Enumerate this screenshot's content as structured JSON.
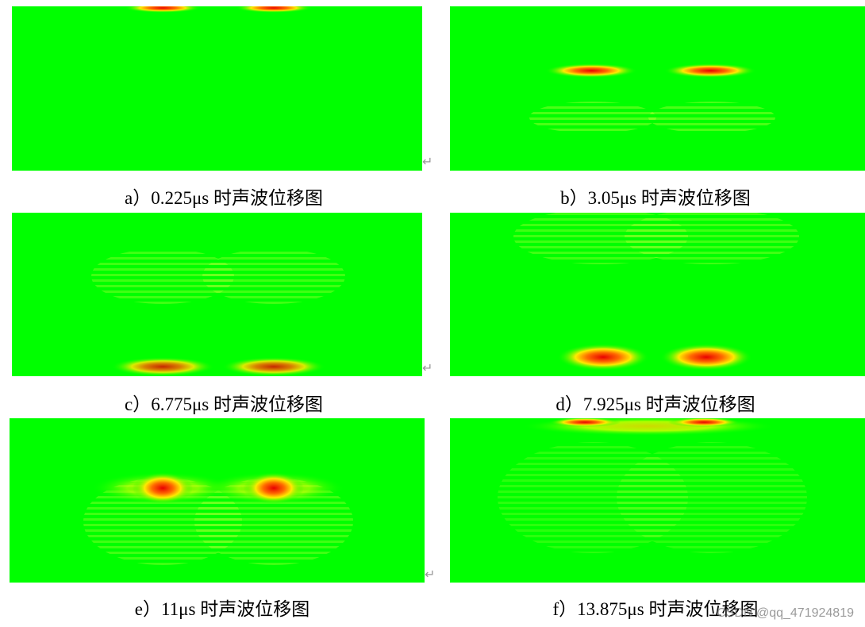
{
  "figures": [
    {
      "caption": "a）0.225μs 时声波位移图"
    },
    {
      "caption": "b）3.05μs 时声波位移图"
    },
    {
      "caption": "c）6.775μs 时声波位移图"
    },
    {
      "caption": "d）7.925μs 时声波位移图"
    },
    {
      "caption": "e）11μs 时声波位移图"
    },
    {
      "caption": "f）13.875μs 时声波位移图"
    }
  ],
  "watermark": "CSDN @qq_471924819"
}
